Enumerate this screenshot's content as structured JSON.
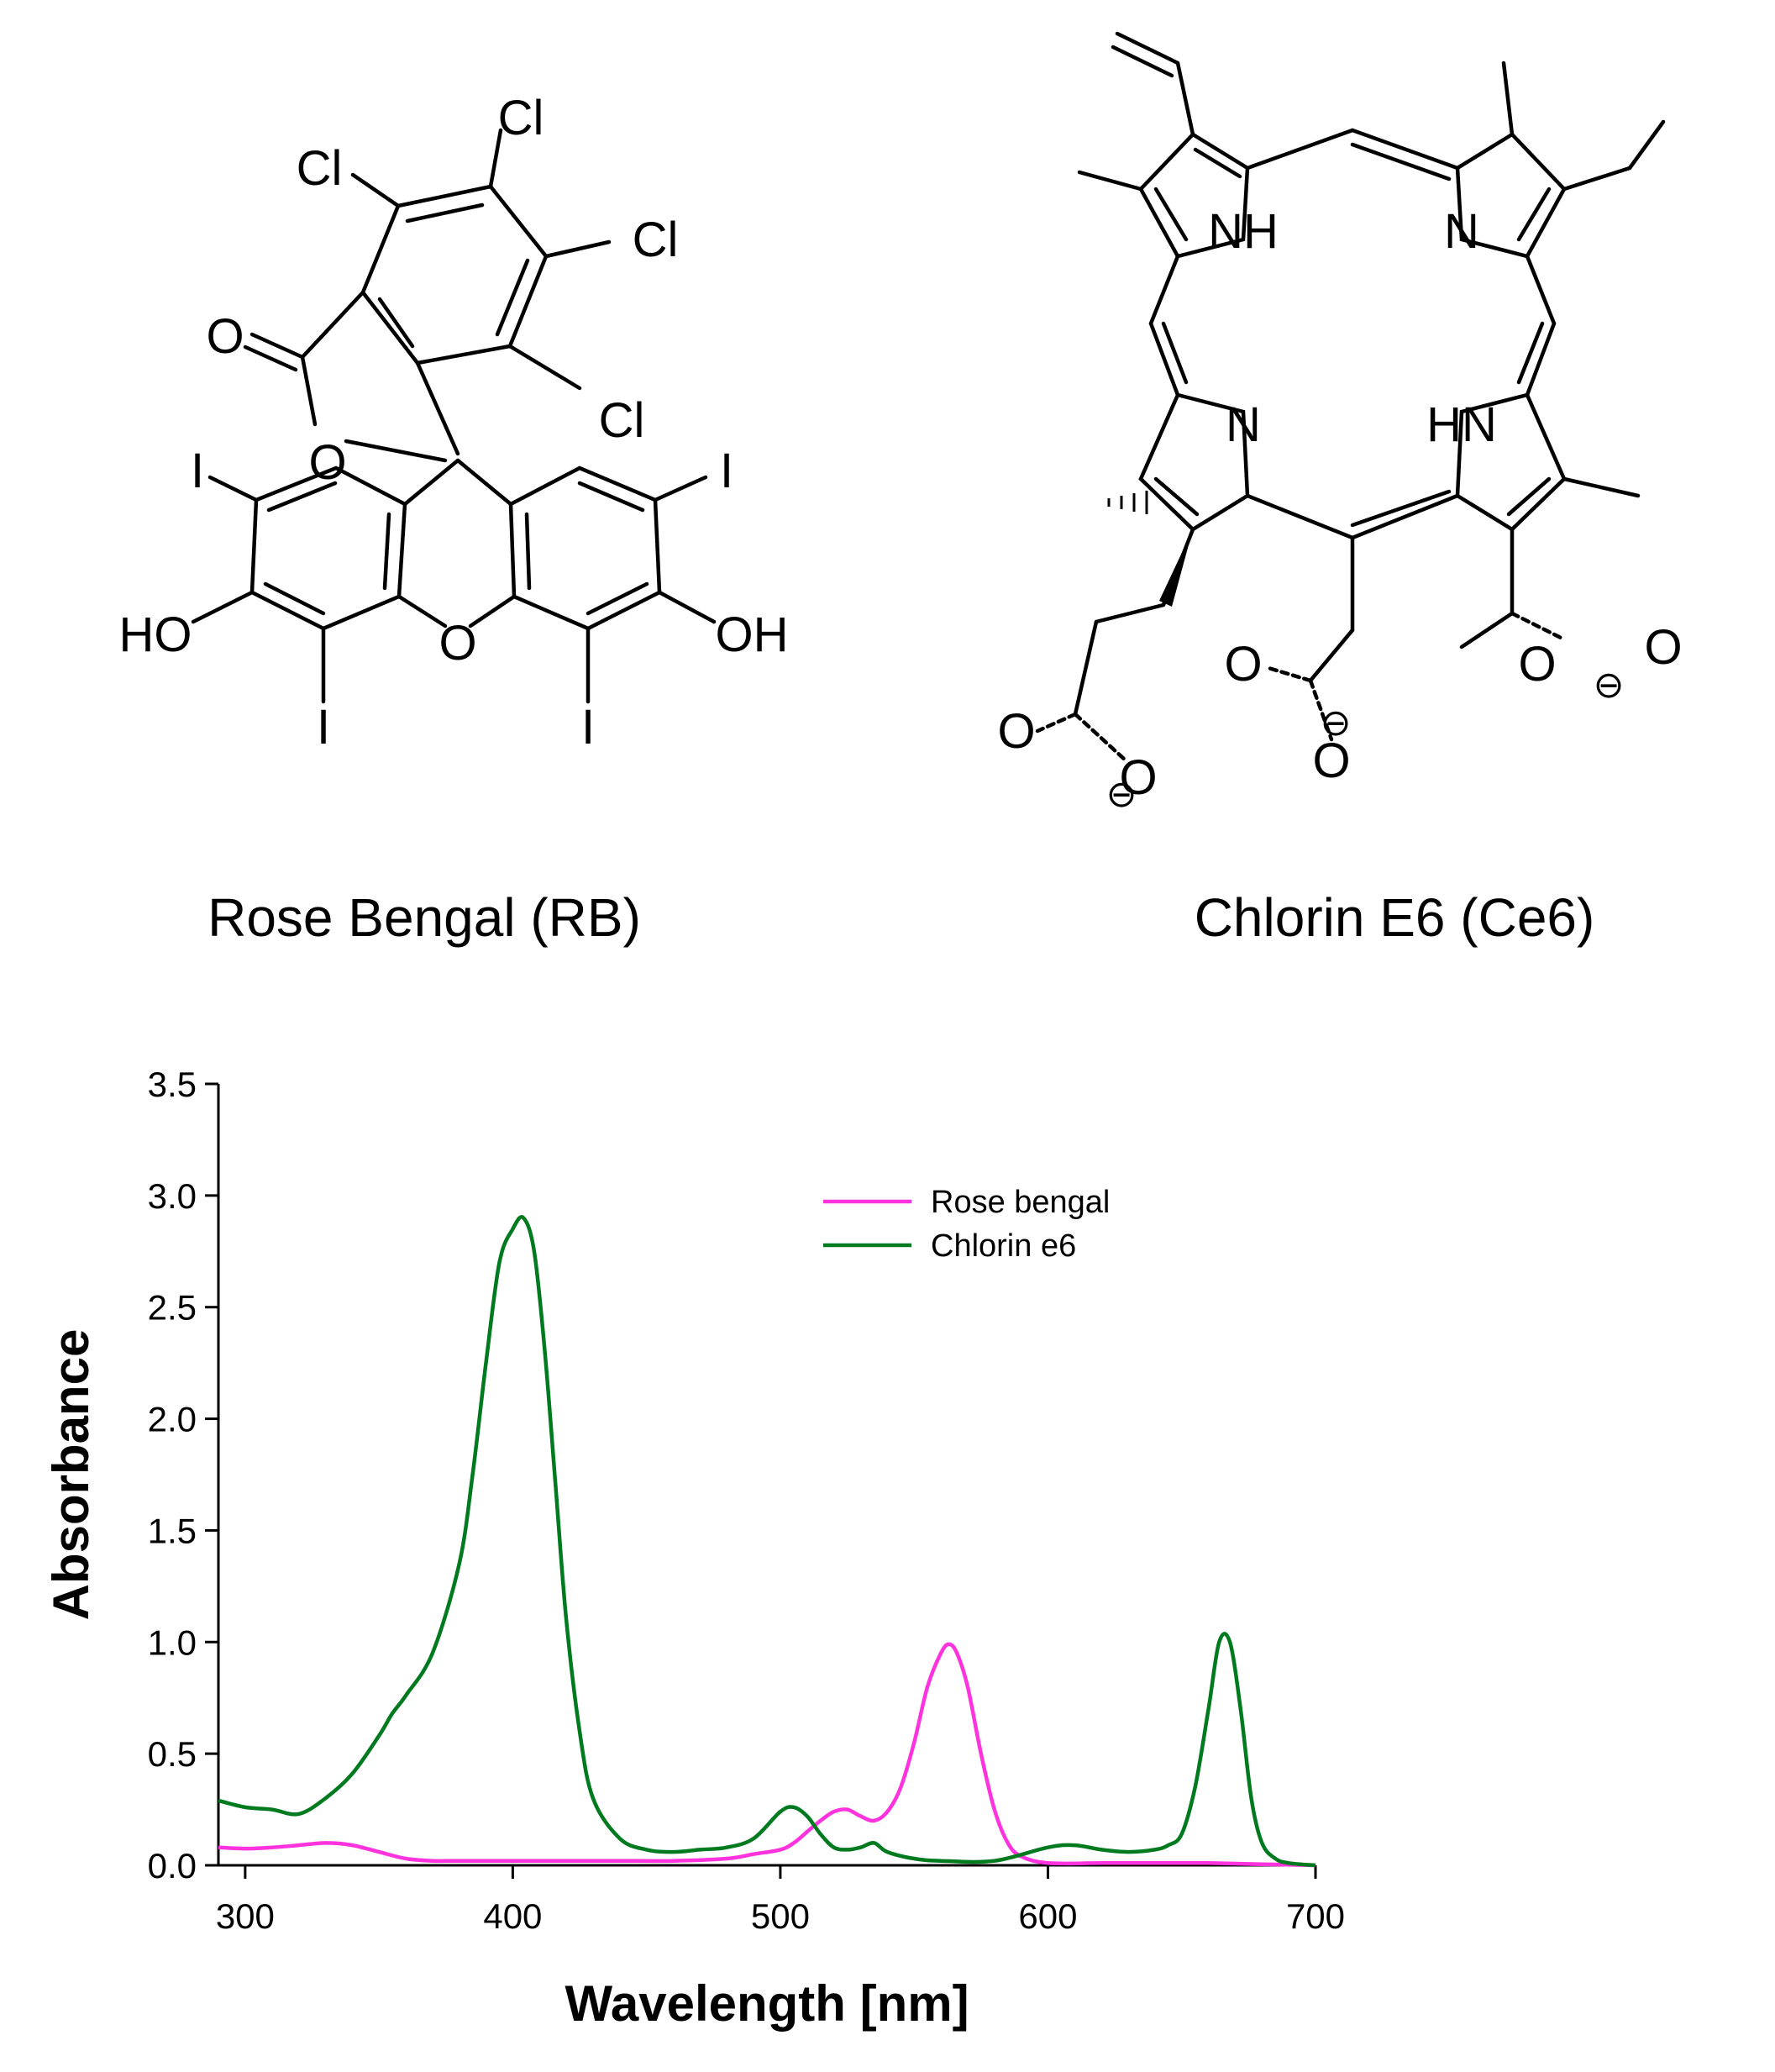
{
  "compounds": {
    "rose_bengal": {
      "name": "Rose Bengal (RB)",
      "atoms": {
        "cl1": "Cl",
        "cl2": "Cl",
        "cl3": "Cl",
        "cl4": "Cl",
        "carbonyl_o": "O",
        "lactone_o": "O",
        "i_left_top": "I",
        "i_right_top": "I",
        "i_left_bottom": "I",
        "i_right_bottom": "I",
        "ho": "HO",
        "oh": "OH",
        "xanthene_o": "O"
      }
    },
    "chlorin_e6": {
      "name": "Chlorin E6  (Ce6)",
      "atoms": {
        "nh_top": "NH",
        "n_top": "N",
        "n_bottom": "N",
        "hn_bottom": "HN",
        "o1": "O",
        "o2": "O",
        "o3": "O",
        "o4": "O",
        "o5": "O",
        "o6": "O",
        "minus": "⊖"
      }
    }
  },
  "chart_data": {
    "type": "line",
    "xlabel": "Wavelength [nm]",
    "ylabel": "Absorbance",
    "xlim": [
      290,
      700
    ],
    "ylim": [
      0,
      3.5
    ],
    "xticks": [
      300,
      400,
      500,
      600,
      700
    ],
    "yticks": [
      0.0,
      0.5,
      1.0,
      1.5,
      2.0,
      2.5,
      3.0,
      3.5
    ],
    "ytick_labels": [
      "0.0",
      "0.5",
      "1.0",
      "1.5",
      "2.0",
      "2.5",
      "3.0",
      "3.5"
    ],
    "xtick_labels": [
      "300",
      "400",
      "500",
      "600",
      "700"
    ],
    "grid": false,
    "legend_position": "top-right",
    "series": [
      {
        "name": "Rose bengal",
        "color": "#ff33dd",
        "x": [
          290,
          300,
          310,
          320,
          330,
          340,
          350,
          360,
          370,
          380,
          400,
          420,
          440,
          460,
          480,
          490,
          500,
          505,
          510,
          515,
          520,
          525,
          530,
          535,
          540,
          545,
          550,
          555,
          560,
          563,
          566,
          570,
          575,
          580,
          585,
          590,
          600,
          620,
          640,
          660,
          680,
          700
        ],
        "y": [
          0.08,
          0.075,
          0.08,
          0.09,
          0.1,
          0.09,
          0.06,
          0.03,
          0.02,
          0.02,
          0.02,
          0.02,
          0.02,
          0.02,
          0.03,
          0.05,
          0.07,
          0.1,
          0.15,
          0.2,
          0.24,
          0.25,
          0.22,
          0.2,
          0.24,
          0.35,
          0.55,
          0.8,
          0.95,
          0.99,
          0.95,
          0.8,
          0.5,
          0.25,
          0.1,
          0.04,
          0.01,
          0.01,
          0.01,
          0.01,
          0.005,
          0.0
        ]
      },
      {
        "name": "Chlorin e6",
        "color": "#007a1e",
        "x": [
          290,
          300,
          310,
          320,
          330,
          340,
          350,
          355,
          360,
          370,
          380,
          385,
          390,
          395,
          400,
          404,
          408,
          412,
          416,
          420,
          425,
          430,
          440,
          450,
          460,
          470,
          480,
          490,
          500,
          505,
          510,
          515,
          520,
          525,
          530,
          535,
          540,
          550,
          560,
          580,
          600,
          610,
          620,
          630,
          640,
          645,
          650,
          655,
          660,
          664,
          668,
          672,
          676,
          680,
          685,
          690,
          700
        ],
        "y": [
          0.29,
          0.26,
          0.25,
          0.23,
          0.3,
          0.41,
          0.58,
          0.68,
          0.76,
          0.95,
          1.35,
          1.75,
          2.25,
          2.7,
          2.85,
          2.9,
          2.75,
          2.3,
          1.7,
          1.1,
          0.6,
          0.3,
          0.12,
          0.07,
          0.06,
          0.07,
          0.08,
          0.12,
          0.24,
          0.26,
          0.22,
          0.14,
          0.08,
          0.07,
          0.08,
          0.1,
          0.06,
          0.03,
          0.02,
          0.02,
          0.08,
          0.09,
          0.07,
          0.06,
          0.07,
          0.09,
          0.14,
          0.35,
          0.7,
          1.0,
          1.0,
          0.7,
          0.3,
          0.1,
          0.03,
          0.01,
          0.0
        ]
      }
    ]
  }
}
